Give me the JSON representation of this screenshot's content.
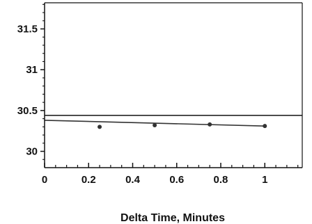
{
  "chart_data": {
    "type": "scatter",
    "title": "",
    "xlabel": "Delta Time, Minutes",
    "ylabel": "",
    "xlim": [
      0,
      1.17
    ],
    "ylim": [
      29.8,
      31.82
    ],
    "x_ticks": [
      0,
      0.2,
      0.4,
      0.6,
      0.8,
      1
    ],
    "x_tick_labels": [
      "0",
      "0.2",
      "0.4",
      "0.6",
      "0.8",
      "1"
    ],
    "y_ticks": [
      30,
      30.5,
      31,
      31.5
    ],
    "y_tick_labels": [
      "30",
      "30.5",
      "31",
      "31.5"
    ],
    "grid": false,
    "legend": "none",
    "series": [
      {
        "kind": "points",
        "x": [
          0.25,
          0.5,
          0.75,
          1.0
        ],
        "y": [
          30.3,
          30.32,
          30.33,
          30.31
        ]
      },
      {
        "kind": "fit-line",
        "x": [
          0,
          1.0
        ],
        "y": [
          30.38,
          30.31
        ]
      }
    ],
    "reference_lines": [
      {
        "orientation": "horizontal",
        "y": 30.44
      }
    ],
    "colors": {
      "axis": "#111111",
      "marks": "#333333"
    }
  }
}
